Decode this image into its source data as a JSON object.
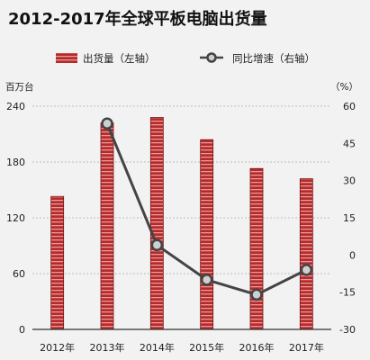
{
  "chart_data": {
    "type": "bar",
    "title": "2012-2017年全球平板电脑出货量",
    "categories": [
      "2012年",
      "2013年",
      "2014年",
      "2015年",
      "2016年",
      "2017年"
    ],
    "series": [
      {
        "name": "出货量（左轴）",
        "type": "bar",
        "axis": "left",
        "values": [
          143,
          222,
          228,
          204,
          173,
          162
        ]
      },
      {
        "name": "同比增速（右轴）",
        "type": "line",
        "axis": "right",
        "values": [
          null,
          53,
          4,
          -10,
          -16,
          -6
        ]
      }
    ],
    "y_left": {
      "label": "百万台",
      "ticks": [
        0,
        60,
        120,
        180,
        240
      ],
      "range": [
        0,
        240
      ]
    },
    "y_right": {
      "label": "%",
      "ticks": [
        -30,
        -15,
        0,
        15,
        30,
        45,
        60
      ],
      "range": [
        -30,
        60
      ]
    },
    "grid": true,
    "legend_position": "top",
    "colors": {
      "bar": "#b52a2a",
      "bar_stripe": "#e89a9a",
      "line": "#444444",
      "marker_fill": "#cfcfcf"
    }
  }
}
